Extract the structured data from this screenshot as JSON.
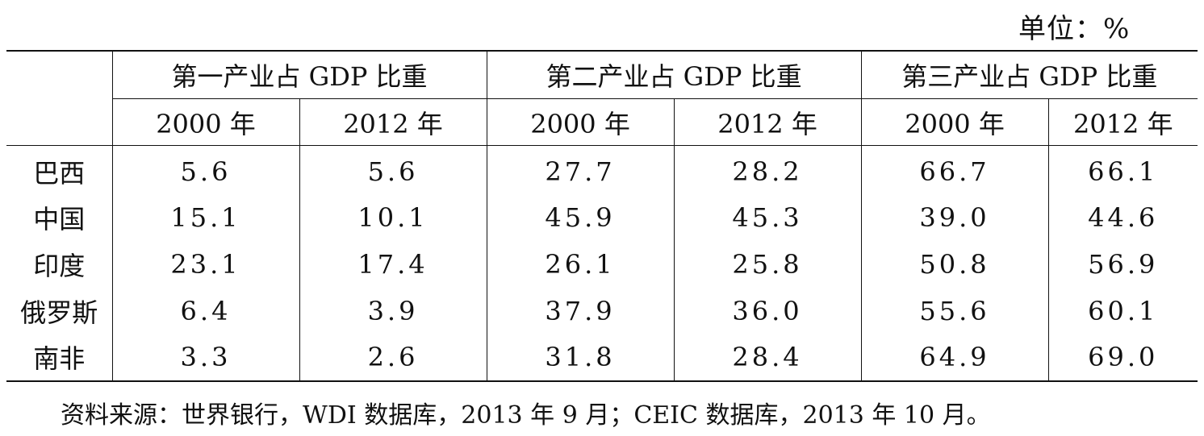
{
  "unit": "单位：%",
  "table": {
    "groups": [
      "第一产业占 GDP 比重",
      "第二产业占 GDP 比重",
      "第三产业占 GDP 比重"
    ],
    "years": [
      "2000 年",
      "2012 年",
      "2000 年",
      "2012 年",
      "2000 年",
      "2012 年"
    ],
    "rows": [
      {
        "country": "巴西",
        "values": [
          "5.6",
          "5.6",
          "27.7",
          "28.2",
          "66.7",
          "66.1"
        ]
      },
      {
        "country": "中国",
        "values": [
          "15.1",
          "10.1",
          "45.9",
          "45.3",
          "39.0",
          "44.6"
        ]
      },
      {
        "country": "印度",
        "values": [
          "23.1",
          "17.4",
          "26.1",
          "25.8",
          "50.8",
          "56.9"
        ]
      },
      {
        "country": "俄罗斯",
        "values": [
          "6.4",
          "3.9",
          "37.9",
          "36.0",
          "55.6",
          "60.1"
        ]
      },
      {
        "country": "南非",
        "values": [
          "3.3",
          "2.6",
          "31.8",
          "28.4",
          "64.9",
          "69.0"
        ]
      }
    ]
  },
  "source": "资料来源：世界银行，WDI 数据库，2013 年 9 月；CEIC 数据库，2013 年 10 月。"
}
